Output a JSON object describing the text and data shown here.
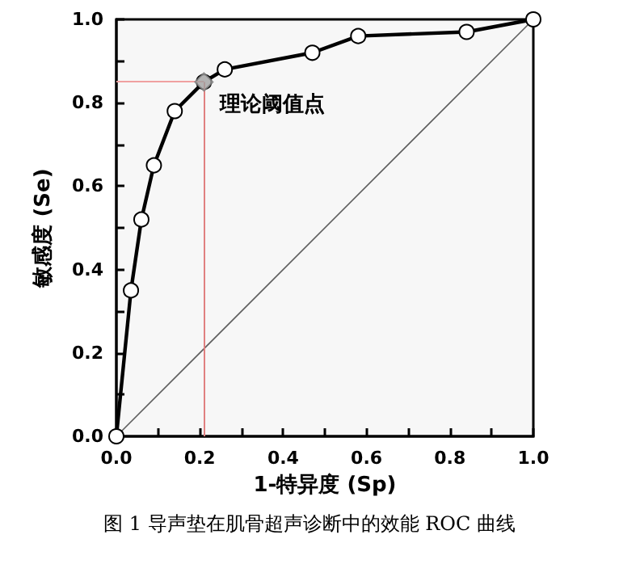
{
  "chart_data": {
    "type": "line",
    "xlabel": "1-特异度 (Sp)",
    "ylabel": "敏感度 (Se)",
    "xlim": [
      0,
      1
    ],
    "ylim": [
      0,
      1
    ],
    "xticks": [
      {
        "value": 0,
        "label": "0.0"
      },
      {
        "value": 0.1,
        "label": null
      },
      {
        "value": 0.2,
        "label": "0.2"
      },
      {
        "value": 0.3,
        "label": null
      },
      {
        "value": 0.4,
        "label": "0.4"
      },
      {
        "value": 0.5,
        "label": null
      },
      {
        "value": 0.6,
        "label": "0.6"
      },
      {
        "value": 0.7,
        "label": null
      },
      {
        "value": 0.8,
        "label": "0.8"
      },
      {
        "value": 0.9,
        "label": null
      },
      {
        "value": 1,
        "label": "1.0"
      }
    ],
    "yticks": [
      {
        "value": 0,
        "label": "0.0"
      },
      {
        "value": 0.1,
        "label": null
      },
      {
        "value": 0.2,
        "label": "0.2"
      },
      {
        "value": 0.3,
        "label": null
      },
      {
        "value": 0.4,
        "label": "0.4"
      },
      {
        "value": 0.5,
        "label": null
      },
      {
        "value": 0.6,
        "label": "0.6"
      },
      {
        "value": 0.7,
        "label": null
      },
      {
        "value": 0.8,
        "label": "0.8"
      },
      {
        "value": 0.9,
        "label": null
      },
      {
        "value": 1,
        "label": "1.0"
      }
    ],
    "series": [
      {
        "color": "#000000",
        "marker": "circle",
        "x": [
          0,
          0.035,
          0.06,
          0.09,
          0.14,
          0.21,
          0.26,
          0.47,
          0.58,
          0.84,
          1
        ],
        "values": [
          0,
          0.35,
          0.52,
          0.65,
          0.78,
          0.85,
          0.88,
          0.92,
          0.96,
          0.97,
          1
        ]
      },
      {
        "type": "line",
        "color": "#606060",
        "marker": "none",
        "x": [
          0,
          1
        ],
        "values": [
          0,
          1
        ]
      },
      {
        "type": "scatter",
        "color": "#a0a0a0",
        "marker": "diamond",
        "x": [
          0.21
        ],
        "values": [
          0.85
        ]
      }
    ],
    "ref_lines": [
      {
        "axis": "x",
        "value": 0.21,
        "color": "#e08080"
      },
      {
        "axis": "y",
        "value": 0.85,
        "color": "#f0a0a0"
      }
    ],
    "annotations": [
      {
        "text": "理论阈值点",
        "x": 0.21,
        "y": 0.85
      },
      "图 1 导声垫在肌骨超声诊断中的效能 ROC 曲线"
    ],
    "grid": false
  }
}
